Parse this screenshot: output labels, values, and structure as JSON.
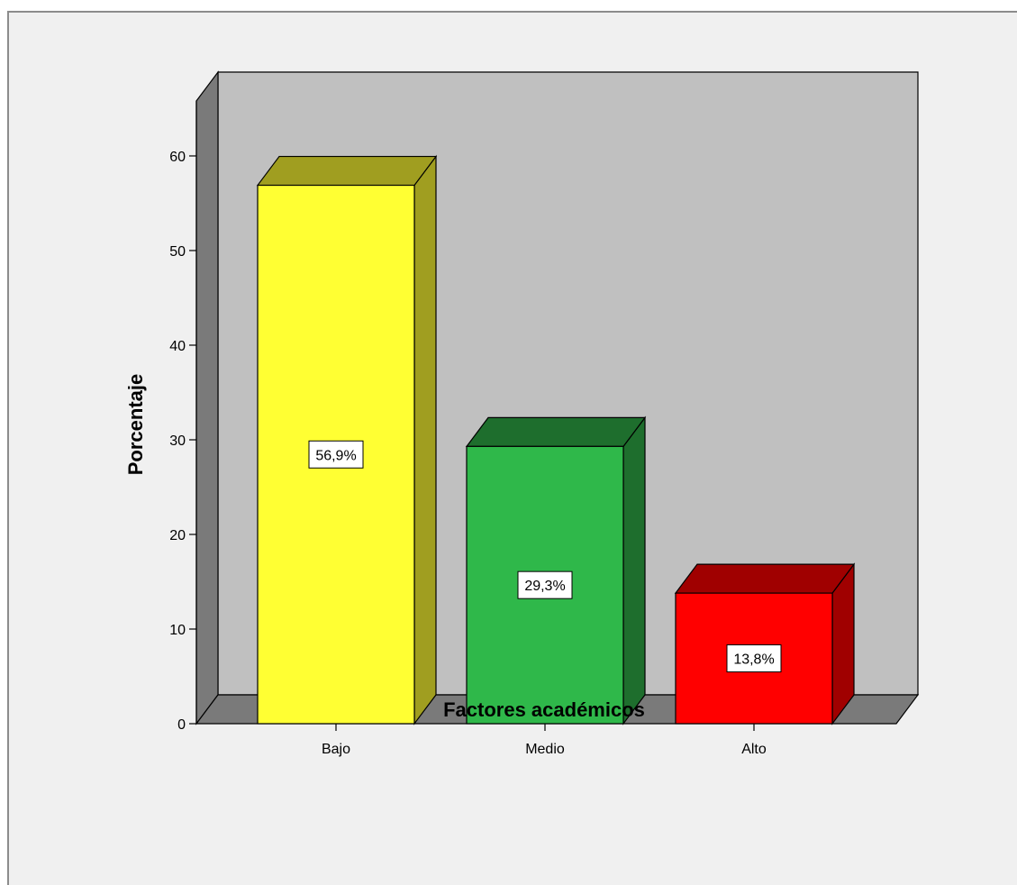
{
  "chart_data": {
    "type": "bar",
    "style": "3d",
    "categories": [
      "Bajo",
      "Medio",
      "Alto"
    ],
    "values": [
      56.9,
      29.3,
      13.8
    ],
    "value_labels": [
      "56,9%",
      "29,3%",
      "13,8%"
    ],
    "colors": [
      "#ffff33",
      "#2fb84a",
      "#ff0000"
    ],
    "side_colors": [
      "#a09e20",
      "#1e6e2d",
      "#a00000"
    ],
    "xlabel": "Factores académicos",
    "ylabel": "Porcentaje",
    "yticks": [
      0,
      10,
      20,
      30,
      40,
      50,
      60
    ],
    "ylim": [
      0,
      60
    ],
    "grid": false,
    "plot_background": "#c0c0c0",
    "wall_color": "#7a7a7a"
  }
}
